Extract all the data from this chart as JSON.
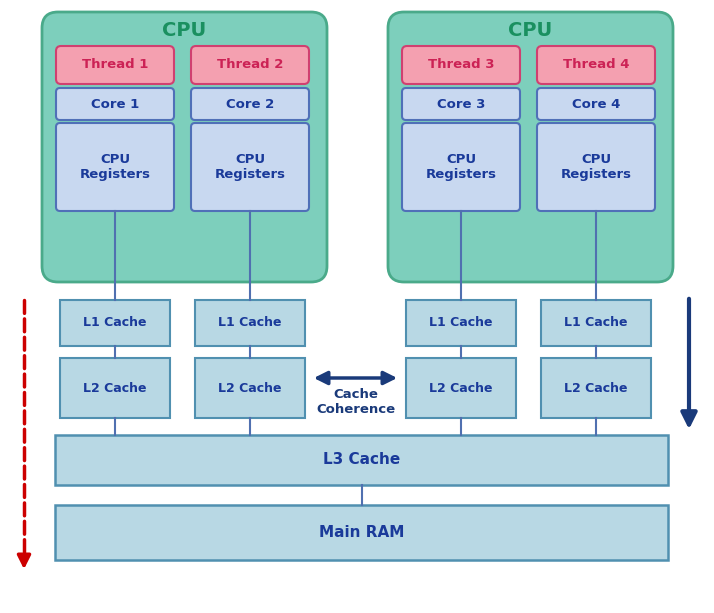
{
  "bg_color": "#ffffff",
  "cpu_box_color": "#7dcfbc",
  "cpu_box_edge": "#4aaa8a",
  "thread_fill": "#f4a0b0",
  "thread_edge": "#d04070",
  "core_fill": "#c8d8f0",
  "core_edge": "#5070b8",
  "reg_fill": "#c8d8f0",
  "reg_edge": "#5070b8",
  "cache_fill": "#b8d8e4",
  "cache_edge": "#5090b0",
  "l3_fill": "#b8d8e4",
  "l3_edge": "#5090b0",
  "ram_fill": "#b8d8e4",
  "ram_edge": "#5090b0",
  "line_color": "#5070b0",
  "arrow_blue": "#1a3a7a",
  "arrow_red": "#cc0000",
  "text_color_cpu": "#1a9060",
  "text_color_thread": "#cc2255",
  "text_color_core": "#1a3a9a",
  "text_color_cache": "#1a3a9a",
  "cpu_labels": [
    "CPU",
    "CPU"
  ],
  "thread_labels": [
    "Thread 1",
    "Thread 2",
    "Thread 3",
    "Thread 4"
  ],
  "core_labels": [
    "Core 1",
    "Core 2",
    "Core 3",
    "Core 4"
  ],
  "reg_label": "CPU\nRegisters",
  "l1_label": "L1 Cache",
  "l2_label": "L2 Cache",
  "l3_label": "L3 Cache",
  "ram_label": "Main RAM",
  "coherence_label": "Cache\nCoherence"
}
